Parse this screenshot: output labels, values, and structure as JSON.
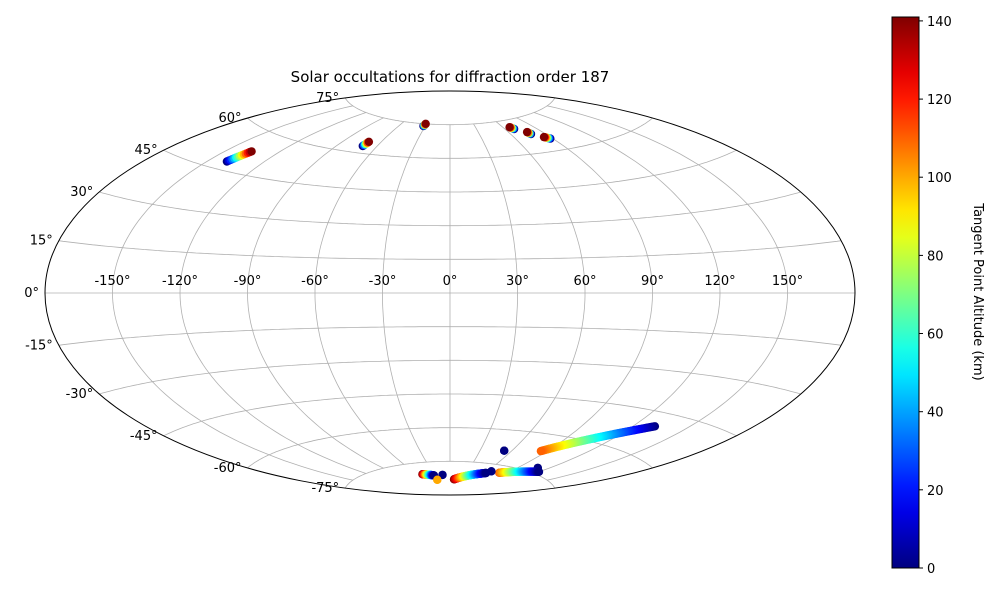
{
  "chart_data": {
    "type": "scatter",
    "projection": "aitoff",
    "title": "Solar occultations for diffraction order 187",
    "xlabel": "",
    "ylabel": "",
    "grid": true,
    "lon_ticks": [
      "-150°",
      "-120°",
      "-90°",
      "-60°",
      "-30°",
      "0°",
      "30°",
      "60°",
      "90°",
      "120°",
      "150°"
    ],
    "lat_ticks": [
      "75°",
      "60°",
      "45°",
      "30°",
      "15°",
      "0°",
      "-15°",
      "-30°",
      "-45°",
      "-60°",
      "-75°"
    ],
    "lon_range": [
      -180,
      180
    ],
    "lat_range": [
      -90,
      90
    ],
    "colorbar": {
      "label": "Tangent Point Altitude (km)",
      "colormap": "jet",
      "range": [
        0,
        141
      ],
      "ticks": [
        "0",
        "20",
        "40",
        "60",
        "80",
        "100",
        "120",
        "140"
      ]
    },
    "series": [
      {
        "lon": [
          -140,
          -136
        ],
        "lat": [
          48,
          53
        ],
        "alt": [
          0,
          141
        ]
      },
      {
        "lon": [
          -71,
          -70
        ],
        "lat": [
          63,
          65
        ],
        "alt": [
          0,
          141
        ]
      },
      {
        "lon": [
          -32,
          -31
        ],
        "lat": [
          74,
          75
        ],
        "alt": [
          0,
          141
        ]
      },
      {
        "lon": [
          69,
          67
        ],
        "lat": [
          71,
          72
        ],
        "alt": [
          0,
          141
        ]
      },
      {
        "lon": [
          78,
          77
        ],
        "lat": [
          68,
          69
        ],
        "alt": [
          0,
          141
        ]
      },
      {
        "lon": [
          88,
          85
        ],
        "lat": [
          65,
          66
        ],
        "alt": [
          0,
          141
        ]
      },
      {
        "lon": [
          132,
          85
        ],
        "lat": [
          -50,
          -67
        ],
        "alt": [
          0,
          110
        ]
      },
      {
        "lon": [
          53,
          53
        ],
        "lat": [
          -69,
          -69
        ],
        "alt": [
          0,
          0
        ]
      },
      {
        "lon": [
          110,
          110
        ],
        "lat": [
          -73,
          -73
        ],
        "alt": [
          0,
          0
        ]
      },
      {
        "lon": [
          -51,
          -32
        ],
        "lat": [
          -80,
          -81
        ],
        "alt": [
          141,
          0
        ]
      },
      {
        "lon": [
          -15,
          -15
        ],
        "lat": [
          -81,
          -81
        ],
        "alt": [
          0,
          0
        ]
      },
      {
        "lon": [
          -32,
          -32
        ],
        "lat": [
          -83,
          -83
        ],
        "alt": [
          100,
          100
        ]
      },
      {
        "lon": [
          10,
          62
        ],
        "lat": [
          -83,
          -79
        ],
        "alt": [
          141,
          0
        ]
      },
      {
        "lon": [
          80,
          120
        ],
        "lat": [
          -78,
          -74
        ],
        "alt": [
          110,
          0
        ]
      },
      {
        "lon": [
          66,
          66
        ],
        "lat": [
          -78,
          -78
        ],
        "alt": [
          0,
          0
        ]
      }
    ]
  }
}
